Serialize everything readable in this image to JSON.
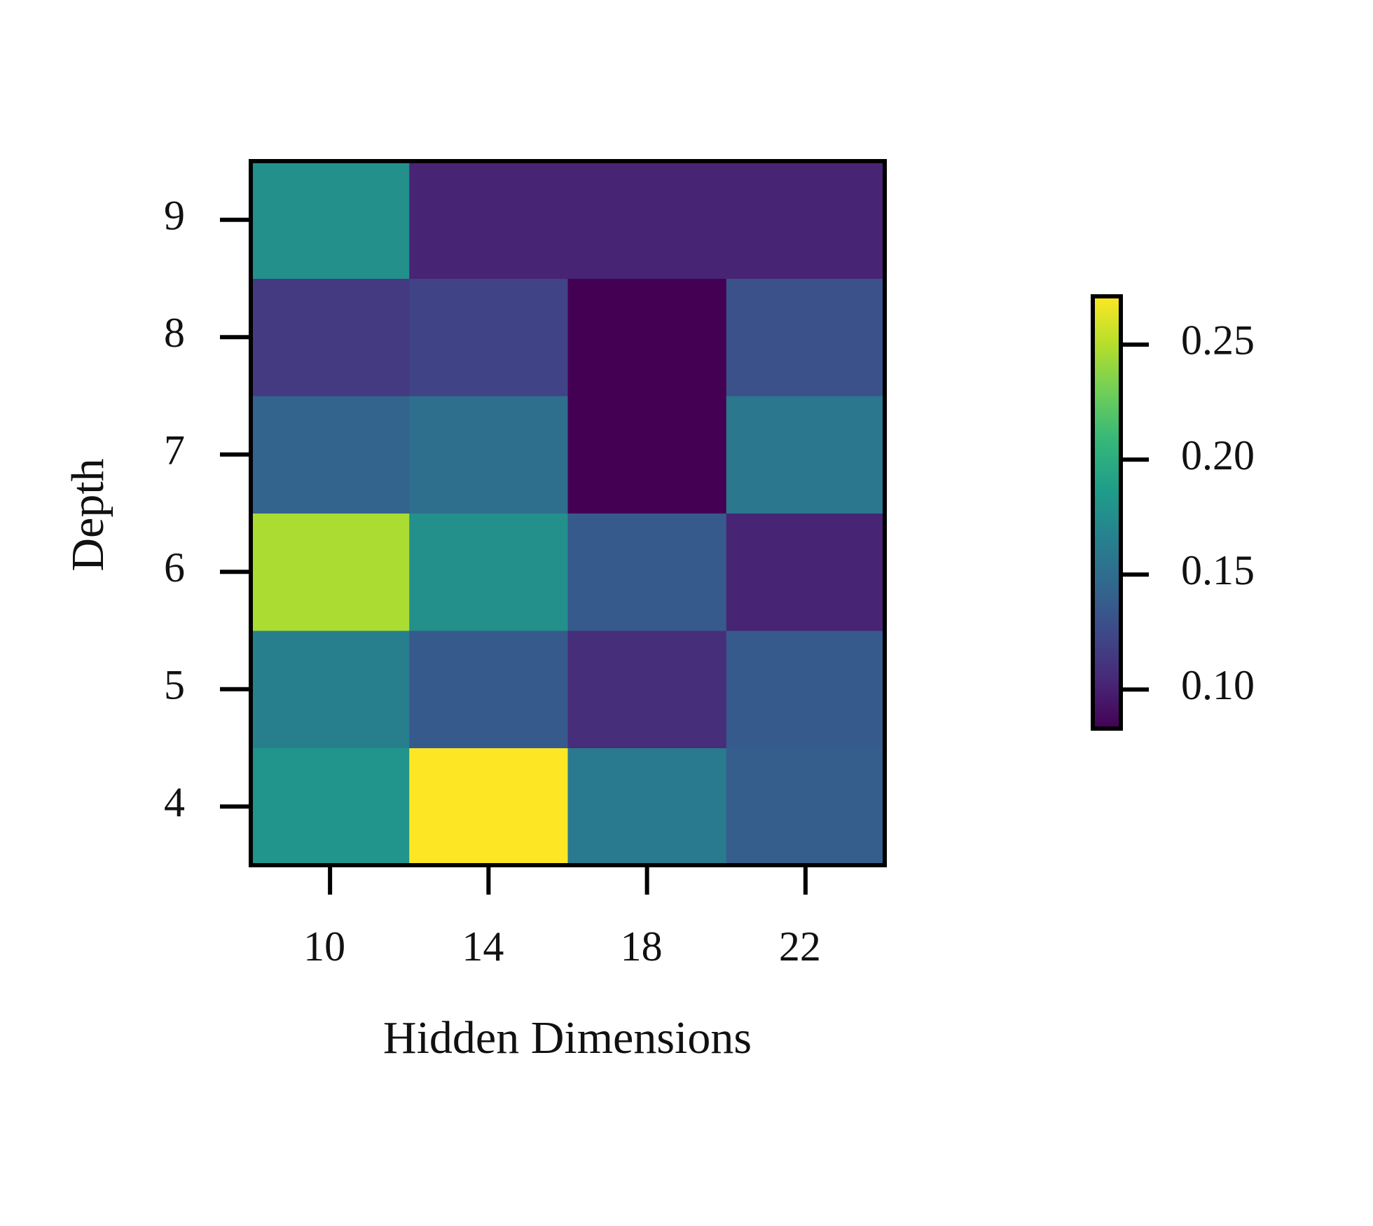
{
  "chart_data": {
    "type": "heatmap",
    "xlabel": "Hidden Dimensions",
    "ylabel": "Depth",
    "x": [
      10,
      14,
      18,
      22
    ],
    "y": [
      4,
      5,
      6,
      7,
      8,
      9
    ],
    "values": [
      [
        0.18,
        0.271,
        0.16,
        0.139
      ],
      [
        0.164,
        0.136,
        0.108,
        0.136
      ],
      [
        0.247,
        0.177,
        0.136,
        0.102
      ],
      [
        0.143,
        0.151,
        0.083,
        0.158
      ],
      [
        0.115,
        0.121,
        0.083,
        0.13
      ],
      [
        0.177,
        0.102,
        0.102,
        0.102
      ]
    ],
    "colormap": "viridis",
    "clim": [
      0.083,
      0.271
    ],
    "colorbar_ticks": [
      {
        "value": 0.1,
        "label": "0.10"
      },
      0.15,
      {
        "value": 0.2,
        "label": "0.20"
      },
      0.25
    ]
  }
}
